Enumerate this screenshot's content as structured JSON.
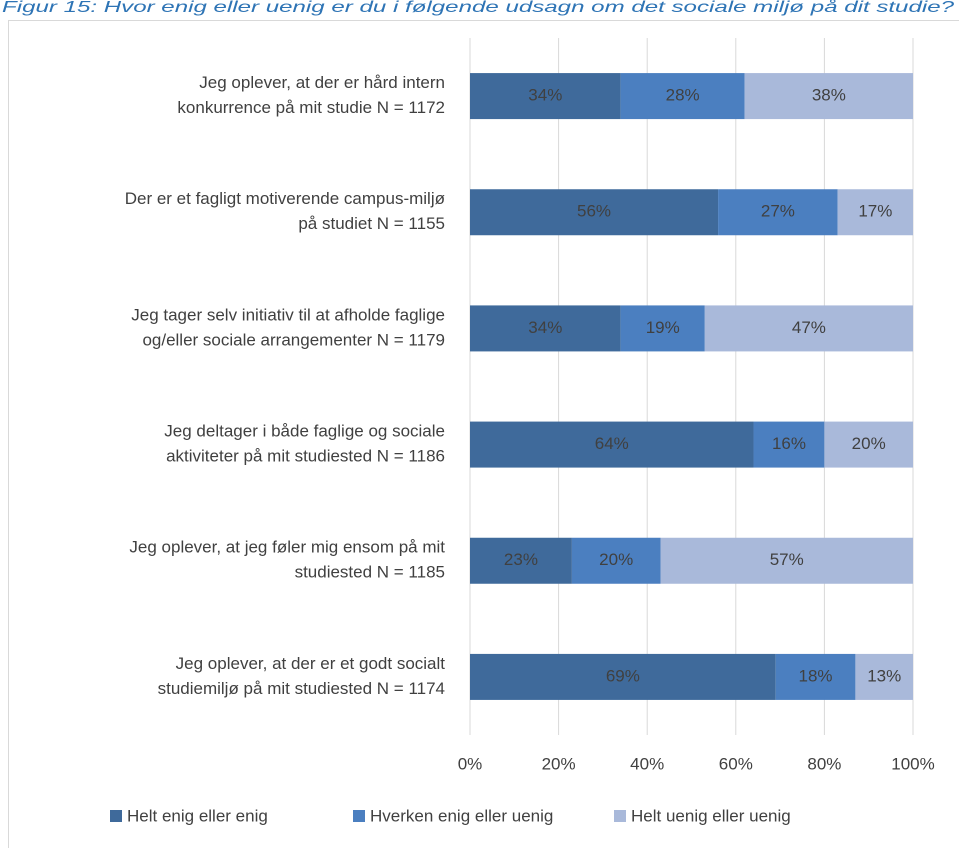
{
  "chart_data": {
    "type": "stacked-bar-horizontal",
    "title": "Figur 15: Hvor enig eller uenig er du i følgende udsagn om det sociale miljø på dit studie?",
    "categories": [
      [
        "Jeg oplever, at der er hård intern",
        "konkurrence på mit studie N = 1172"
      ],
      [
        "Der er et fagligt motiverende campus-miljø",
        "på studiet N = 1155"
      ],
      [
        "Jeg tager selv initiativ til at afholde faglige",
        "og/eller sociale arrangementer N = 1179"
      ],
      [
        "Jeg deltager i både faglige og sociale",
        "aktiviteter på mit studiested N = 1186"
      ],
      [
        "Jeg oplever, at jeg føler mig ensom på mit",
        "studiested N = 1185"
      ],
      [
        "Jeg oplever, at der er et godt socialt",
        "studiemiljø på mit studiested N = 1174"
      ]
    ],
    "series": [
      {
        "name": "Helt enig eller enig",
        "color": "#3f6a9b",
        "values": [
          34,
          56,
          34,
          64,
          23,
          69
        ],
        "value_labels": [
          "34%",
          "56%",
          "34%",
          "64%",
          "23%",
          "69%"
        ]
      },
      {
        "name": "Hverken enig eller uenig",
        "color": "#4b7fc0",
        "values": [
          28,
          27,
          19,
          16,
          20,
          18
        ],
        "value_labels": [
          "28%",
          "27%",
          "19%",
          "16%",
          "20%",
          "18%"
        ]
      },
      {
        "name": "Helt uenig eller uenig",
        "color": "#a9b9da",
        "values": [
          38,
          17,
          47,
          20,
          57,
          13
        ],
        "value_labels": [
          "38%",
          "17%",
          "47%",
          "20%",
          "57%",
          "13%"
        ]
      }
    ],
    "xlim": [
      0,
      100
    ],
    "xticks": [
      {
        "value": 0,
        "label": "0%"
      },
      {
        "value": 20,
        "label": "20%"
      },
      {
        "value": 40,
        "label": "40%"
      },
      {
        "value": 60,
        "label": "60%"
      },
      {
        "value": 80,
        "label": "80%"
      },
      {
        "value": 100,
        "label": "100%"
      }
    ],
    "grid": true,
    "legend": "bottom"
  }
}
